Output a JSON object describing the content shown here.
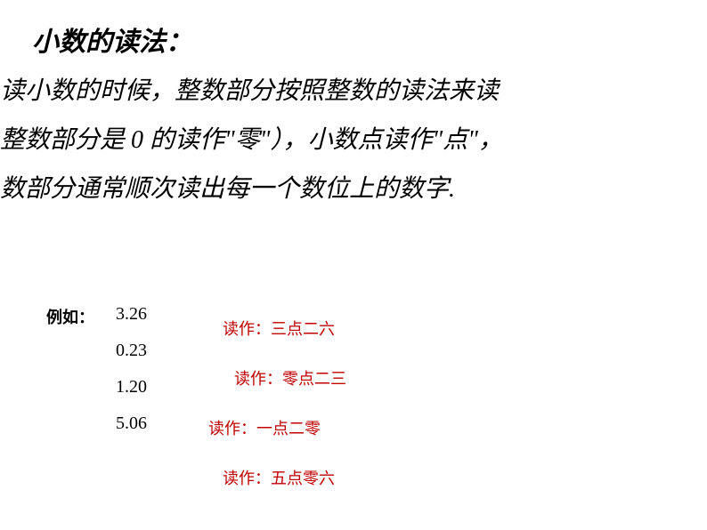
{
  "title": "小数的读法：",
  "rules": {
    "line1": "读小数的时候，整数部分按照整数的读法来读",
    "line2": "整数部分是 0 的读作\"零\"），小数点读作\"点\"，",
    "line3": "数部分通常顺次读出每一个数位上的数字."
  },
  "example_label": "例如：",
  "examples": [
    {
      "number": "3.26",
      "reading": "读作：三点二六"
    },
    {
      "number": "0.23",
      "reading": "读作：零点二三"
    },
    {
      "number": "1.20",
      "reading": "读作：一点二零"
    },
    {
      "number": "5.06",
      "reading": "读作：五点零六"
    }
  ],
  "colors": {
    "text": "#000000",
    "reading_text": "#c00000",
    "background": "#ffffff"
  },
  "typography": {
    "title_fontsize": 30,
    "rule_fontsize": 28,
    "example_label_fontsize": 18,
    "number_fontsize": 20,
    "reading_fontsize": 18,
    "main_font": "KaiTi italic",
    "number_font": "Times New Roman",
    "reading_font": "SimSun"
  }
}
